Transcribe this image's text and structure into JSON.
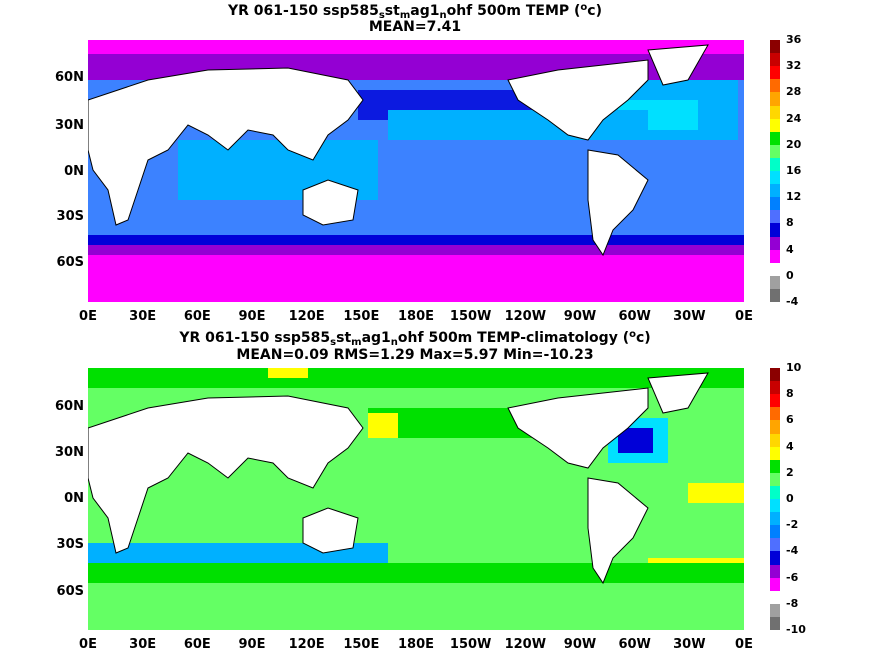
{
  "panels": [
    {
      "title_line1_parts": [
        "YR 061-150 ssp585",
        "s",
        "st",
        "m",
        "ag1",
        "n",
        "ohf 500m TEMP (",
        "o",
        "c)"
      ],
      "title_line2": "MEAN=7.41",
      "colorbar_labels": [
        "36",
        "32",
        "28",
        "24",
        "20",
        "16",
        "12",
        "8",
        "4",
        "0",
        "-4"
      ],
      "colorbar_colors": [
        "#8b0000",
        "#c80000",
        "#ff0000",
        "#ff6a00",
        "#ffa500",
        "#ffd700",
        "#ffff00",
        "#00e000",
        "#64ff64",
        "#00ffc8",
        "#00e0ff",
        "#00b0ff",
        "#0080ff",
        "#4f6fff",
        "#0000d8",
        "#9400d3",
        "#ff00ff",
        "#ffffff",
        "#a0a0a0",
        "#707070"
      ]
    },
    {
      "title_line1_parts": [
        "YR 061-150 ssp585",
        "s",
        "st",
        "m",
        "ag1",
        "n",
        "ohf 500m TEMP-climatology (",
        "o",
        "c)"
      ],
      "title_line2": "MEAN=0.09   RMS=1.29   Max=5.97   Min=-10.23",
      "colorbar_labels": [
        "10",
        "8",
        "6",
        "4",
        "2",
        "0",
        "-2",
        "-4",
        "-6",
        "-8",
        "-10"
      ],
      "colorbar_colors": [
        "#8b0000",
        "#c80000",
        "#ff0000",
        "#ff6a00",
        "#ffa500",
        "#ffd700",
        "#ffff00",
        "#00e000",
        "#64ff64",
        "#00ffc8",
        "#00e0ff",
        "#00b0ff",
        "#0080ff",
        "#4f6fff",
        "#0000d8",
        "#9400d3",
        "#ff00ff",
        "#ffffff",
        "#a0a0a0",
        "#707070"
      ]
    }
  ],
  "axes": {
    "lat_labels": [
      "60N",
      "30N",
      "0N",
      "30S",
      "60S"
    ],
    "lon_labels": [
      "0E",
      "30E",
      "60E",
      "90E",
      "120E",
      "150E",
      "180E",
      "150W",
      "120W",
      "90W",
      "60W",
      "30W",
      "0E"
    ]
  },
  "colors": {
    "land": "#ffffff",
    "coast": "#000000"
  }
}
